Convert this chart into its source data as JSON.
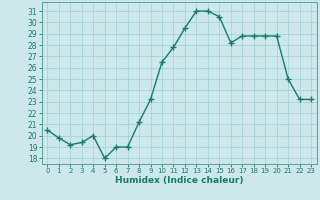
{
  "x": [
    0,
    1,
    2,
    3,
    4,
    5,
    6,
    7,
    8,
    9,
    10,
    11,
    12,
    13,
    14,
    15,
    16,
    17,
    18,
    19,
    20,
    21,
    22,
    23
  ],
  "y": [
    20.5,
    19.8,
    19.2,
    19.4,
    20.0,
    18.0,
    19.0,
    19.0,
    21.2,
    23.2,
    26.5,
    27.8,
    29.5,
    31.0,
    31.0,
    30.5,
    28.2,
    28.8,
    28.8,
    28.8,
    28.8,
    25.0,
    23.2,
    23.2
  ],
  "xlabel": "Humidex (Indice chaleur)",
  "xlim": [
    -0.5,
    23.5
  ],
  "ylim": [
    17.5,
    31.8
  ],
  "yticks": [
    18,
    19,
    20,
    21,
    22,
    23,
    24,
    25,
    26,
    27,
    28,
    29,
    30,
    31
  ],
  "xticks": [
    0,
    1,
    2,
    3,
    4,
    5,
    6,
    7,
    8,
    9,
    10,
    11,
    12,
    13,
    14,
    15,
    16,
    17,
    18,
    19,
    20,
    21,
    22,
    23
  ],
  "line_color": "#1a7a6e",
  "marker_color": "#1a7a6e",
  "bg_color": "#cce8ea",
  "grid_color": "#a0cfd5",
  "label_color": "#1a7a6e",
  "tick_color": "#1a7a6e",
  "spine_color": "#5aa0a0"
}
